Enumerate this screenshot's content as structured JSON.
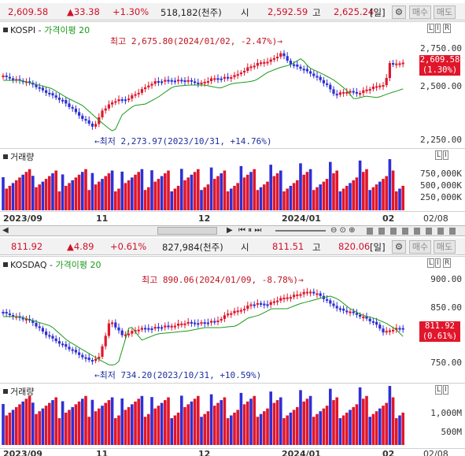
{
  "colors": {
    "up": "#e0162b",
    "down": "#2f2fd6",
    "ma": "#1a9a1a",
    "annotation_up": "#c0121f",
    "annotation_down": "#1f2f9e"
  },
  "kospi": {
    "header": {
      "price": "2,609.58",
      "change": "▲33.38",
      "pct": "+1.30%",
      "volume": "518,182(천주)",
      "open_label": "시",
      "open": "2,592.59",
      "high_label": "고",
      "high": "2,625.24",
      "period": "[일]",
      "gear_icon": "gear-icon",
      "buy": "매수",
      "sell": "매도"
    },
    "title": "KOSPI",
    "ma_label": "가격이평 20",
    "ctl": [
      "L",
      "I",
      "R"
    ],
    "y_labels": [
      "2,750.00",
      "2,500.00",
      "2,250.00"
    ],
    "max_note": "최고 2,675.80(2024/01/02, -2.47%)→",
    "min_note": "←최저 2,273.97(2023/10/31, +14.76%)",
    "tag_price": "2,609.58",
    "tag_pct": "(1.30%)",
    "vol_title": "거래량",
    "vol_ctl": [
      "L",
      "I"
    ],
    "vol_labels": [
      "750,000K",
      "500,000K",
      "250,000K"
    ],
    "x_labels": [
      "2023/09",
      "11",
      "12",
      "2024/01",
      "02",
      "02/08"
    ]
  },
  "kosdaq": {
    "header": {
      "price": "811.92",
      "change": "▲4.89",
      "pct": "+0.61%",
      "volume": "827,984(천주)",
      "open_label": "시",
      "open": "811.51",
      "high_label": "고",
      "high": "820.06",
      "period": "[일]",
      "gear_icon": "gear-icon",
      "buy": "매수",
      "sell": "매도"
    },
    "title": "KOSDAQ",
    "ma_label": "가격이평 20",
    "ctl": [
      "L",
      "I",
      "R"
    ],
    "y_labels": [
      "900.00",
      "850.00",
      "750.00"
    ],
    "max_note": "최고 890.06(2024/01/09, -8.78%)→",
    "min_note": "←최저 734.20(2023/10/31, +10.59%)",
    "tag_price": "811.92",
    "tag_pct": "(0.61%)",
    "vol_title": "거래량",
    "vol_ctl": [
      "L",
      "I"
    ],
    "vol_labels": [
      "1,000M",
      "500M"
    ],
    "x_labels": [
      "2023/09",
      "11",
      "12",
      "2024/01",
      "02",
      "02/08"
    ]
  },
  "scrollbar": {
    "left_arrow": "◀",
    "right_arrow": "▶",
    "play_icons": "⏮ ⏸ ⏭",
    "zoom_icons": "⊖ ⊙ ⊕"
  },
  "chart_data": [
    {
      "type": "candlestick",
      "title": "KOSPI",
      "ylim": [
        2230,
        2800
      ],
      "last_close": 2609.58,
      "max": 2675.8,
      "min": 2273.97
    },
    {
      "type": "candlestick",
      "title": "KOSDAQ",
      "ylim": [
        730,
        915
      ],
      "last_close": 811.92,
      "max": 890.06,
      "min": 734.2
    }
  ]
}
